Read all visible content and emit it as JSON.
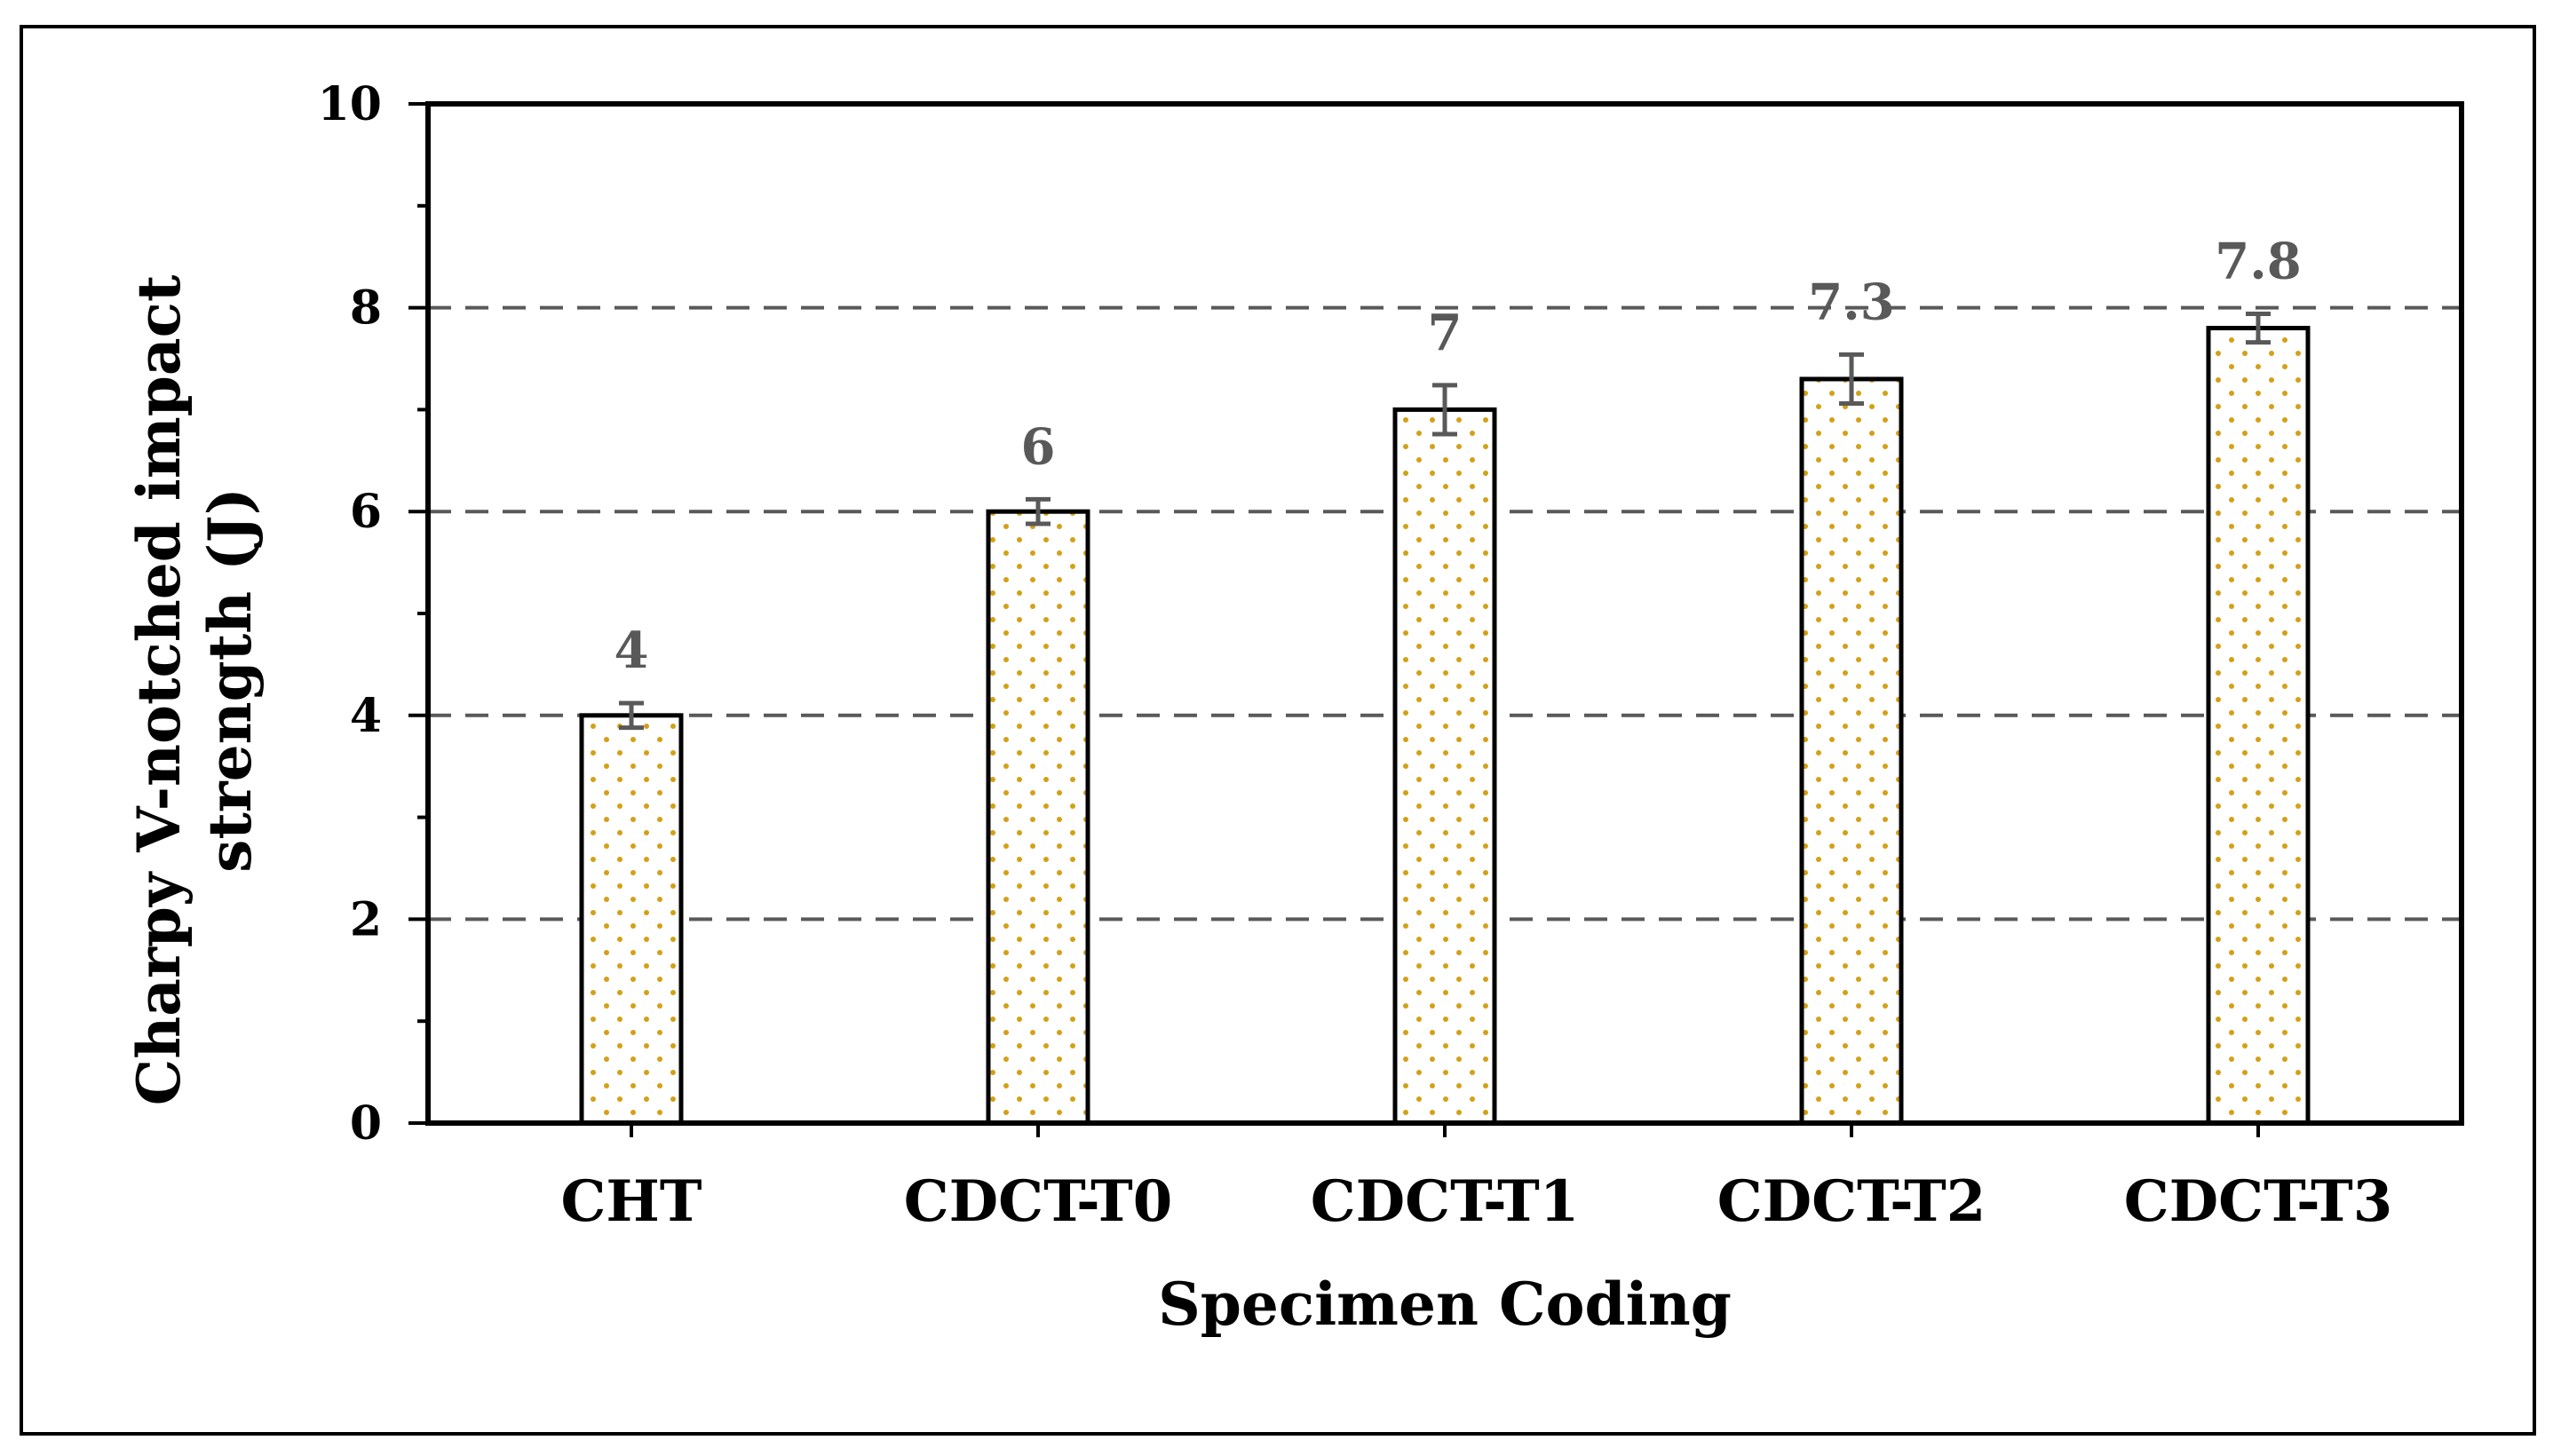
{
  "chart_data": {
    "type": "bar",
    "title": "",
    "categories": [
      "CHT",
      "CDCT-T0",
      "CDCT-T1",
      "CDCT-T2",
      "CDCT-T3"
    ],
    "values": [
      4,
      6,
      7,
      7.3,
      7.8
    ],
    "error": [
      0.12,
      0.12,
      0.24,
      0.24,
      0.14
    ],
    "data_labels": [
      "4",
      "6",
      "7",
      "7.3",
      "7.8"
    ],
    "xlabel": "Specimen Coding",
    "ylabel": [
      "Charpy V-notched impact",
      "strength (J)"
    ],
    "ylim": [
      0,
      10
    ],
    "yticks": [
      0,
      2,
      4,
      6,
      8,
      10
    ],
    "ytick_labels": [
      "0",
      "2",
      "4",
      "6",
      "8",
      "10"
    ],
    "grid": "horizontal dashed",
    "colors": {
      "bar_fill": "#ffffff",
      "bar_dots": "#d4a017",
      "bar_edge": "#000000",
      "grid": "#595959",
      "error_bar": "#595959",
      "label": "#595959"
    }
  }
}
